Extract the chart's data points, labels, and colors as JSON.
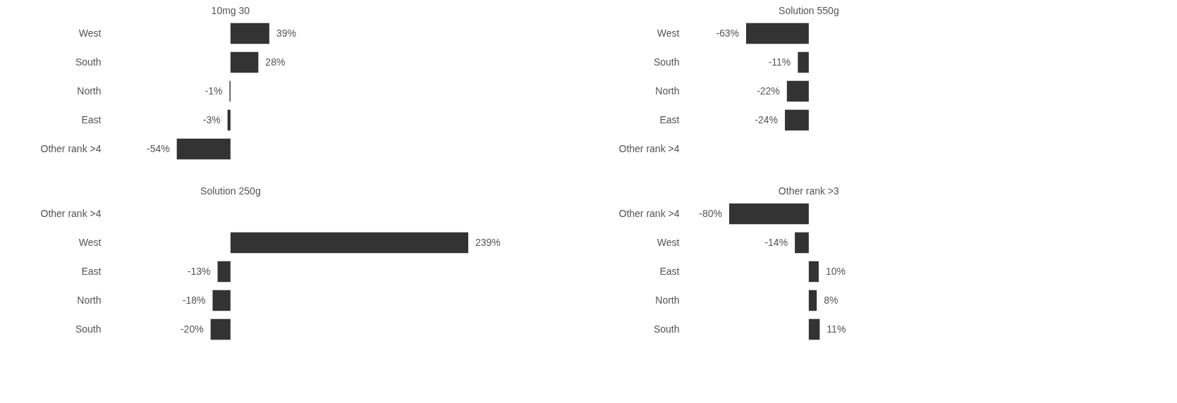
{
  "chart_data": [
    {
      "type": "bar",
      "orientation": "horizontal",
      "title": "10mg 30",
      "categories": [
        "West",
        "South",
        "North",
        "East",
        "Other rank >4"
      ],
      "values": [
        39,
        28,
        -1,
        -3,
        -54
      ],
      "value_labels": [
        "39%",
        "28%",
        "-1%",
        "-3%",
        "-54%"
      ],
      "color": "#333333"
    },
    {
      "type": "bar",
      "orientation": "horizontal",
      "title": "Solution 550g",
      "categories": [
        "West",
        "South",
        "North",
        "East",
        "Other rank >4"
      ],
      "values": [
        -63,
        -11,
        -22,
        -24,
        null
      ],
      "value_labels": [
        "-63%",
        "-11%",
        "-22%",
        "-24%",
        null
      ],
      "color": "#333333"
    },
    {
      "type": "bar",
      "orientation": "horizontal",
      "title": "Solution 250g",
      "categories": [
        "Other rank >4",
        "West",
        "East",
        "North",
        "South"
      ],
      "values": [
        null,
        239,
        -13,
        -18,
        -20
      ],
      "value_labels": [
        null,
        "239%",
        "-13%",
        "-18%",
        "-20%"
      ],
      "color": "#333333"
    },
    {
      "type": "bar",
      "orientation": "horizontal",
      "title": "Other rank >3",
      "categories": [
        "Other rank >4",
        "West",
        "East",
        "North",
        "South"
      ],
      "values": [
        -80,
        -14,
        10,
        8,
        11
      ],
      "value_labels": [
        "-80%",
        "-14%",
        "10%",
        "8%",
        "11%"
      ],
      "color": "#333333"
    }
  ]
}
